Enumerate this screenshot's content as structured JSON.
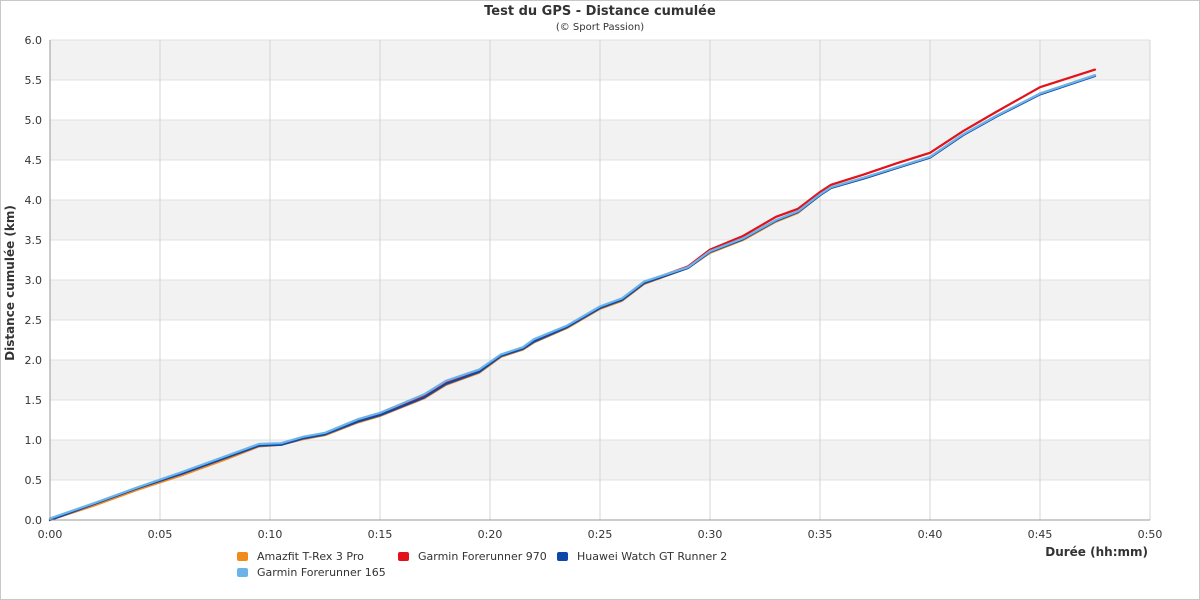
{
  "chart_data": {
    "type": "line",
    "title": "Test du GPS - Distance cumulée",
    "subtitle": "(© Sport Passion)",
    "xlabel": "Durée (hh:mm)",
    "ylabel": "Distance cumulée (km)",
    "xlim": [
      0,
      50
    ],
    "ylim": [
      0,
      6
    ],
    "x_ticks": [
      {
        "value": 0,
        "label": "0:00"
      },
      {
        "value": 5,
        "label": "0:05"
      },
      {
        "value": 10,
        "label": "0:10"
      },
      {
        "value": 15,
        "label": "0:15"
      },
      {
        "value": 20,
        "label": "0:20"
      },
      {
        "value": 25,
        "label": "0:25"
      },
      {
        "value": 30,
        "label": "0:30"
      },
      {
        "value": 35,
        "label": "0:35"
      },
      {
        "value": 40,
        "label": "0:40"
      },
      {
        "value": 45,
        "label": "0:45"
      },
      {
        "value": 50,
        "label": "0:50"
      }
    ],
    "y_ticks": [
      {
        "value": 0,
        "label": "0.0"
      },
      {
        "value": 0.5,
        "label": "0.5"
      },
      {
        "value": 1,
        "label": "1.0"
      },
      {
        "value": 1.5,
        "label": "1.5"
      },
      {
        "value": 2,
        "label": "2.0"
      },
      {
        "value": 2.5,
        "label": "2.5"
      },
      {
        "value": 3,
        "label": "3.0"
      },
      {
        "value": 3.5,
        "label": "3.5"
      },
      {
        "value": 4,
        "label": "4.0"
      },
      {
        "value": 4.5,
        "label": "4.5"
      },
      {
        "value": 5,
        "label": "5.0"
      },
      {
        "value": 5.5,
        "label": "5.5"
      },
      {
        "value": 6,
        "label": "6.0"
      }
    ],
    "grid": "horizontal bands and vertical lines",
    "legend_position": "bottom",
    "series": [
      {
        "name": "Amazfit T-Rex 3 Pro",
        "color": "#f08c1e",
        "x": [
          0,
          2,
          4,
          6,
          8,
          9.5,
          10.5,
          11.5,
          12.5,
          14,
          15,
          17,
          18,
          19.5,
          20.5,
          21.5,
          22,
          23.5,
          25,
          26,
          27,
          29,
          30,
          31.5,
          33,
          34,
          35,
          35.5,
          37,
          38.5,
          40,
          41.5,
          43,
          45,
          47.5
        ],
        "y": [
          0,
          0.18,
          0.38,
          0.56,
          0.76,
          0.92,
          0.94,
          1.01,
          1.06,
          1.22,
          1.3,
          1.52,
          1.69,
          1.84,
          2.04,
          2.13,
          2.22,
          2.4,
          2.64,
          2.74,
          2.95,
          3.15,
          3.34,
          3.5,
          3.73,
          3.84,
          4.06,
          4.15,
          4.27,
          4.4,
          4.53,
          4.81,
          5.05,
          5.33,
          5.56
        ]
      },
      {
        "name": "Garmin Forerunner 970",
        "color": "#e3111a",
        "x": [
          0,
          2,
          4,
          6,
          8,
          9.5,
          10.5,
          11.5,
          12.5,
          14,
          15,
          17,
          18,
          19.5,
          20.5,
          21.5,
          22,
          23.5,
          25,
          26,
          27,
          29,
          30,
          31.5,
          33,
          34,
          35,
          35.5,
          37,
          38.5,
          40,
          41.5,
          43,
          45,
          47.5
        ],
        "y": [
          0,
          0.2,
          0.4,
          0.58,
          0.78,
          0.93,
          0.95,
          1.03,
          1.08,
          1.24,
          1.32,
          1.55,
          1.72,
          1.87,
          2.06,
          2.15,
          2.25,
          2.42,
          2.66,
          2.76,
          2.97,
          3.17,
          3.38,
          3.55,
          3.79,
          3.89,
          4.1,
          4.19,
          4.32,
          4.46,
          4.59,
          4.86,
          5.1,
          5.41,
          5.63
        ]
      },
      {
        "name": "Huawei Watch GT Runner 2",
        "color": "#0d47a8",
        "x": [
          0,
          2,
          4,
          6,
          8,
          9.5,
          10.5,
          11.5,
          12.5,
          14,
          15,
          17,
          18,
          19.5,
          20.5,
          21.5,
          22,
          23.5,
          25,
          26,
          27,
          29,
          30,
          31.5,
          33,
          34,
          35,
          35.5,
          37,
          38.5,
          40,
          41.5,
          43,
          45,
          47.5
        ],
        "y": [
          0,
          0.2,
          0.4,
          0.58,
          0.78,
          0.93,
          0.94,
          1.02,
          1.07,
          1.23,
          1.31,
          1.53,
          1.7,
          1.85,
          2.05,
          2.14,
          2.23,
          2.41,
          2.65,
          2.75,
          2.96,
          3.15,
          3.35,
          3.51,
          3.74,
          3.85,
          4.06,
          4.15,
          4.27,
          4.4,
          4.53,
          4.81,
          5.04,
          5.32,
          5.55
        ]
      },
      {
        "name": "Garmin Forerunner 165",
        "color": "#6bb4ea",
        "x": [
          0,
          2,
          4,
          6,
          8,
          9.5,
          10.5,
          11.5,
          12.5,
          14,
          15,
          17,
          18,
          19.5,
          20.5,
          21.5,
          22,
          23.5,
          25,
          26,
          27,
          29,
          30,
          31.5,
          33,
          34,
          35,
          35.5,
          37,
          38.5,
          40,
          41.5,
          43,
          45,
          47.5
        ],
        "y": [
          0.02,
          0.21,
          0.41,
          0.6,
          0.8,
          0.95,
          0.96,
          1.04,
          1.09,
          1.26,
          1.34,
          1.57,
          1.74,
          1.88,
          2.07,
          2.16,
          2.26,
          2.43,
          2.67,
          2.77,
          2.98,
          3.16,
          3.36,
          3.52,
          3.75,
          3.86,
          4.07,
          4.16,
          4.28,
          4.41,
          4.54,
          4.82,
          5.05,
          5.33,
          5.56
        ]
      }
    ],
    "legend_order": [
      0,
      1,
      2,
      3
    ]
  }
}
